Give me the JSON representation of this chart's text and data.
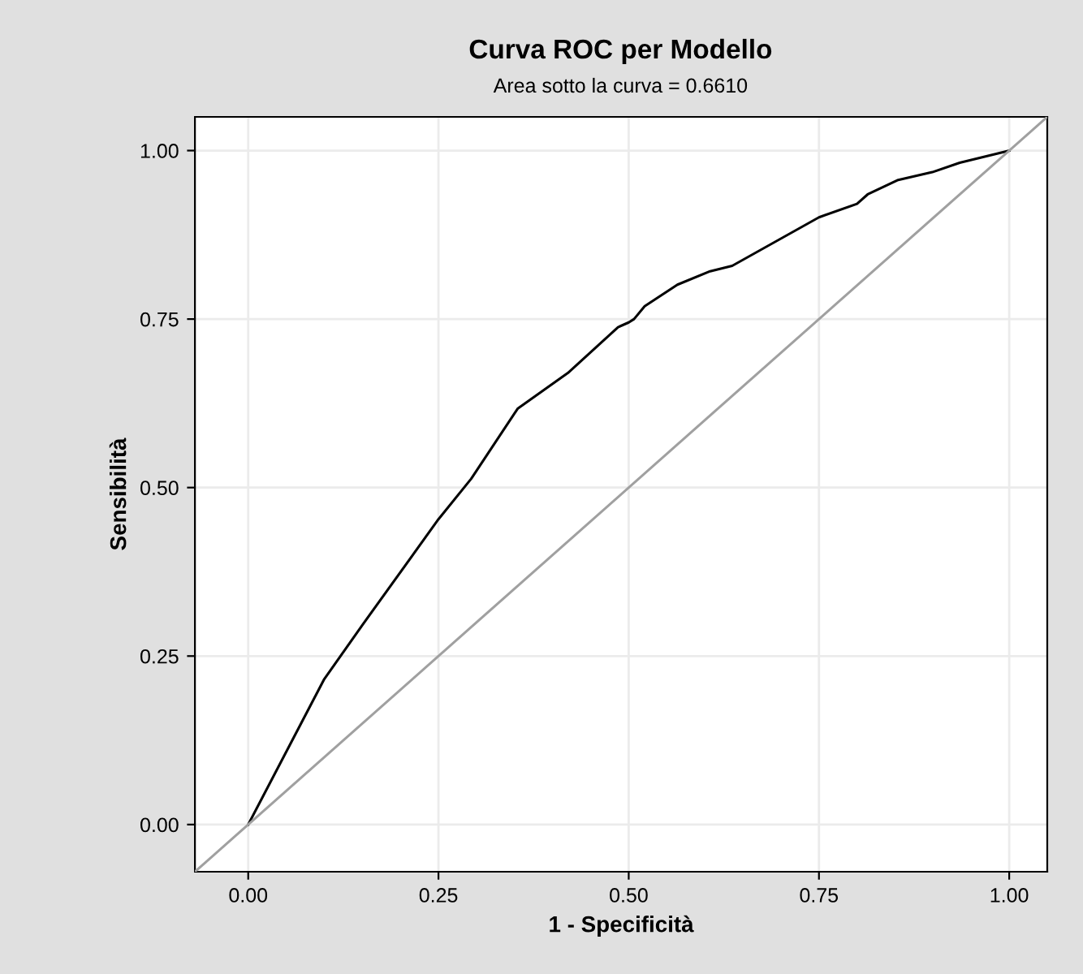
{
  "chart_data": {
    "type": "line",
    "title": "Curva ROC per Modello",
    "subtitle": "Area sotto la curva = 0.6610",
    "xlabel": "1 - Specificità",
    "ylabel": "Sensibilità",
    "series": [
      {
        "color": "#000000",
        "x": [
          0,
          0.1,
          0.15,
          0.25,
          0.293,
          0.354,
          0.42,
          0.486,
          0.5,
          0.507,
          0.521,
          0.564,
          0.607,
          0.636,
          0.75,
          0.8,
          0.814,
          0.853,
          0.899,
          0.935,
          1
        ],
        "values": [
          0,
          0.216,
          0.296,
          0.453,
          0.513,
          0.617,
          0.67,
          0.738,
          0.745,
          0.75,
          0.769,
          0.801,
          0.821,
          0.829,
          0.901,
          0.921,
          0.935,
          0.956,
          0.968,
          0.982,
          1
        ]
      },
      {
        "color": "#a0a0a0",
        "x": [
          -0.07,
          1.05
        ],
        "values": [
          -0.07,
          1.05
        ]
      }
    ],
    "xlim": [
      -0.07,
      1.05
    ],
    "ylim": [
      -0.07,
      1.05
    ],
    "xticks": [
      {
        "value": 0,
        "label": "0.00"
      },
      {
        "value": 0.25,
        "label": "0.25"
      },
      {
        "value": 0.5,
        "label": "0.50"
      },
      {
        "value": 0.75,
        "label": "0.75"
      },
      {
        "value": 1,
        "label": "1.00"
      }
    ],
    "yticks": [
      {
        "value": 0,
        "label": "0.00"
      },
      {
        "value": 0.25,
        "label": "0.25"
      },
      {
        "value": 0.5,
        "label": "0.50"
      },
      {
        "value": 0.75,
        "label": "0.75"
      },
      {
        "value": 1,
        "label": "1.00"
      }
    ],
    "grid": true,
    "legend": false
  }
}
